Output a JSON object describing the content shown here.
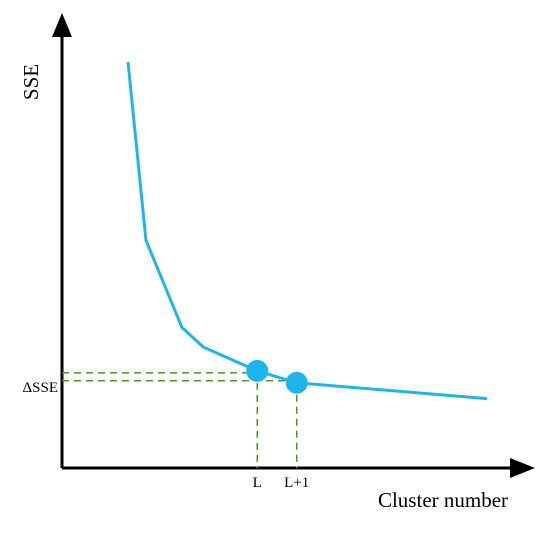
{
  "chart_data": {
    "type": "line",
    "xlabel": "Cluster number",
    "ylabel": "SSE",
    "x_ticks": [
      "L",
      "L+1"
    ],
    "y_annotation": "ΔSSE",
    "grid": false,
    "colors": {
      "series": "#1fb5ec",
      "guide": "#4a9a1a",
      "axis": "#000000"
    },
    "series": [
      {
        "points": [
          {
            "x": 0.0,
            "y": 1.0
          },
          {
            "x": 0.05,
            "y": 0.55
          },
          {
            "x": 0.15,
            "y": 0.33
          },
          {
            "x": 0.21,
            "y": 0.28
          },
          {
            "x": 0.36,
            "y": 0.22
          },
          {
            "x": 0.47,
            "y": 0.19
          },
          {
            "x": 1.0,
            "y": 0.15
          }
        ],
        "highlighted": [
          {
            "x": 0.36,
            "y": 0.22,
            "label": "L"
          },
          {
            "x": 0.47,
            "y": 0.19,
            "label": "L+1"
          }
        ]
      }
    ]
  }
}
